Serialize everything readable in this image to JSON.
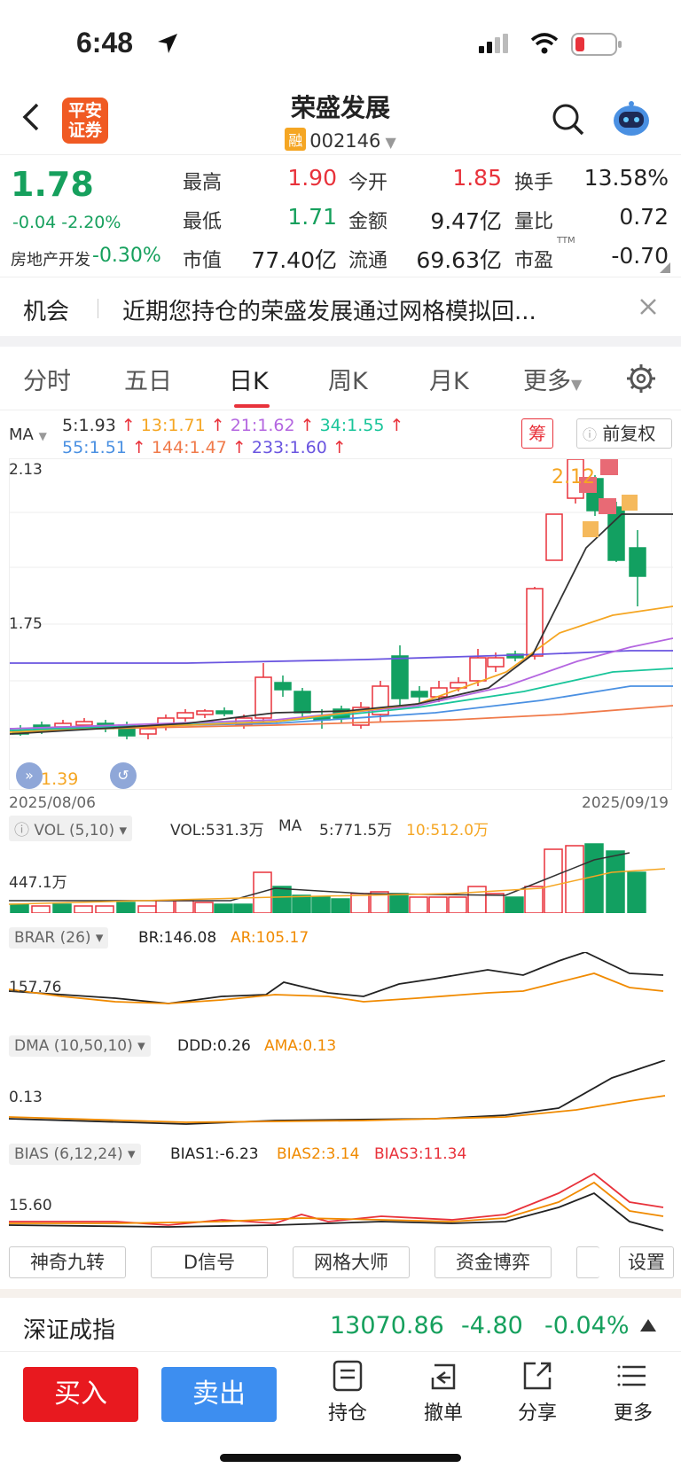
{
  "status_bar": {
    "time": "6:48"
  },
  "header": {
    "title": "荣盛发展",
    "margin_badge": "融",
    "code": "002146",
    "logo_top": "平安",
    "logo_bottom": "证券"
  },
  "quote": {
    "price": "1.78",
    "change": "-0.04",
    "change_pct": "-2.20%",
    "sector_name": "房地产开发",
    "sector_pct": "-0.30%",
    "fields": [
      {
        "label": "最高",
        "value": "1.90"
      },
      {
        "label": "今开",
        "value": "1.85"
      },
      {
        "label": "换手",
        "value": "13.58%"
      },
      {
        "label": "最低",
        "value": "1.71"
      },
      {
        "label": "金额",
        "value": "9.47亿"
      },
      {
        "label": "量比",
        "value": "0.72"
      },
      {
        "label": "市值",
        "value": "77.40亿"
      },
      {
        "label": "流通",
        "value": "69.63亿"
      },
      {
        "label": "市盈",
        "value": "-0.70"
      }
    ],
    "pe_tag": "TTM"
  },
  "banner": {
    "tag": "机会",
    "text": "近期您持仓的荣盛发展通过网格模拟回..."
  },
  "tabs": [
    "分时",
    "五日",
    "日K",
    "周K",
    "月K",
    "更多"
  ],
  "active_tab": "日K",
  "ma": {
    "label": "MA",
    "items": [
      {
        "text": "5:1.93",
        "color": "#333333"
      },
      {
        "text": "13:1.71",
        "color": "#f5a623"
      },
      {
        "text": "21:1.62",
        "color": "#b466e0"
      },
      {
        "text": "34:1.55",
        "color": "#19c59a"
      },
      {
        "text": "55:1.51",
        "color": "#4a90e2"
      },
      {
        "text": "144:1.47",
        "color": "#f07a4a"
      },
      {
        "text": "233:1.60",
        "color": "#6a55e0"
      }
    ],
    "chou": "筹",
    "adjust": "前复权"
  },
  "kchart": {
    "y_top": "2.13",
    "y_mid": "1.75",
    "low_label": "1.39",
    "high_label": "2.12",
    "date_start": "2025/08/06",
    "date_end": "2025/09/19",
    "buy_marker": "买",
    "t_marker": "T"
  },
  "vol": {
    "label": "VOL (5,10)",
    "vol": "VOL:531.3万",
    "ma_label": "MA",
    "ma5": "5:771.5万",
    "ma10": "10:512.0万",
    "axis": "447.1万"
  },
  "brar": {
    "label": "BRAR (26)",
    "br": "BR:146.08",
    "ar": "AR:105.17",
    "axis": "157.76"
  },
  "dma": {
    "label": "DMA (10,50,10)",
    "ddd": "DDD:0.26",
    "ama": "AMA:0.13",
    "axis": "0.13"
  },
  "bias": {
    "label": "BIAS (6,12,24)",
    "b1": "BIAS1:-6.23",
    "b2": "BIAS2:3.14",
    "b3": "BIAS3:11.34",
    "axis": "15.60"
  },
  "features": [
    "神奇九转",
    "D信号",
    "网格大师",
    "资金博弈",
    "设置"
  ],
  "index": {
    "name": "深证成指",
    "value": "13070.86",
    "change": "-4.80",
    "pct": "-0.04%"
  },
  "actions": {
    "buy": "买入",
    "sell": "卖出",
    "nav": [
      "持仓",
      "撤单",
      "分享",
      "更多"
    ]
  }
}
